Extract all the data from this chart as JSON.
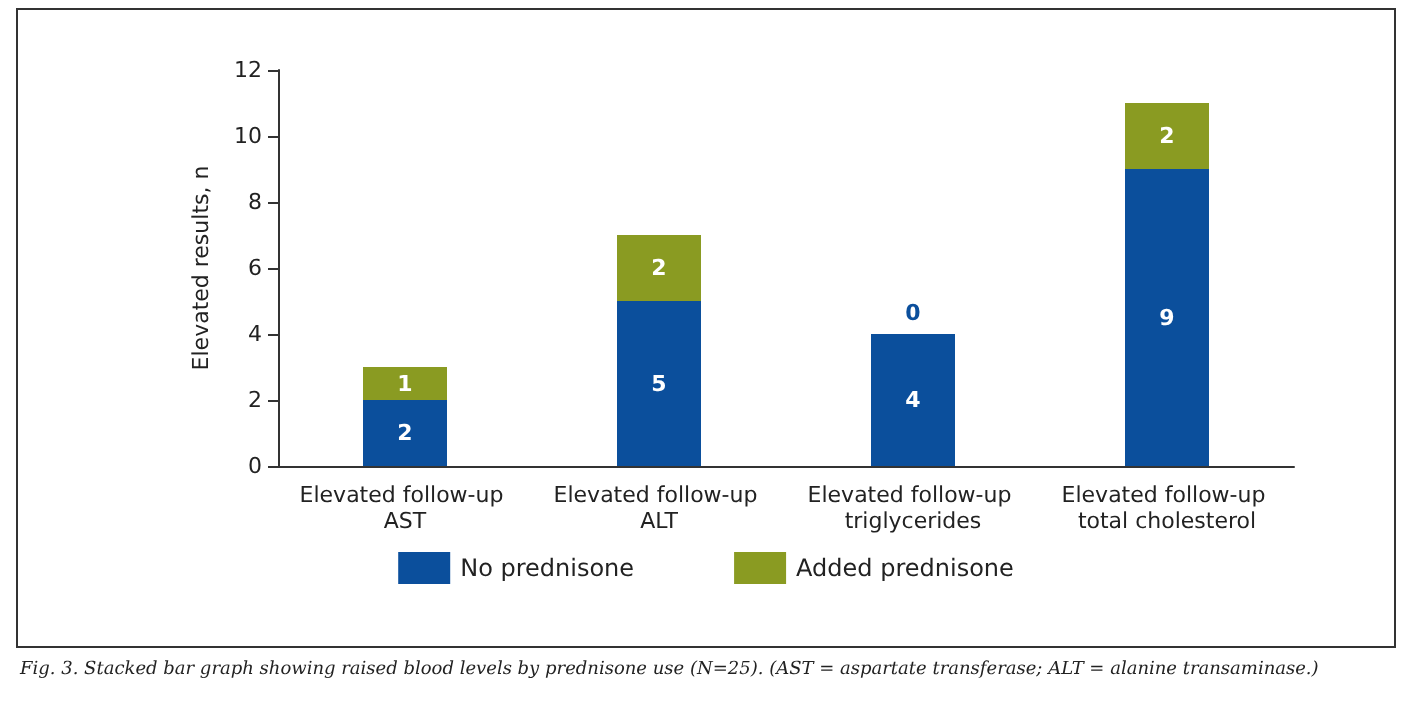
{
  "chart_data": {
    "type": "bar",
    "stacked": true,
    "ylabel": "Elevated results, n",
    "categories": [
      "Elevated follow-up AST",
      "Elevated follow-up ALT",
      "Elevated follow-up triglycerides",
      "Elevated follow-up total cholesterol"
    ],
    "series": [
      {
        "name": "No prednisone",
        "color": "#0b4f9c",
        "values": [
          2,
          5,
          4,
          9
        ]
      },
      {
        "name": "Added prednisone",
        "color": "#8a9b22",
        "values": [
          1,
          2,
          0,
          2
        ]
      }
    ],
    "ylim": [
      0,
      12
    ],
    "yticks": [
      0,
      2,
      4,
      6,
      8,
      10,
      12
    ],
    "grid": false,
    "legend": "bottom",
    "data_labels": true,
    "annotations": [
      "Fig. 3. Stacked bar graph showing raised blood levels by prednisone use (N=25). (AST = aspartate transferase; ALT = alanine transaminase.)"
    ]
  }
}
